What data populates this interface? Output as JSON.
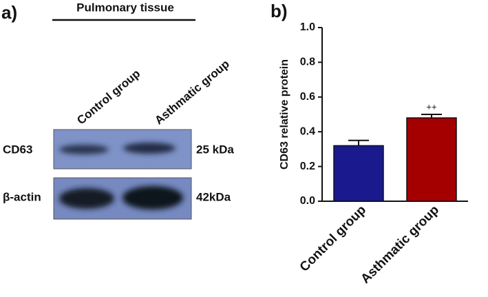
{
  "panel_a": {
    "label": "a)",
    "header": "Pulmonary tissue",
    "lanes": [
      "Control group",
      "Asthmatic group"
    ],
    "rows": [
      {
        "protein": "CD63",
        "size": "25 kDa"
      },
      {
        "protein": "β-actin",
        "size": "42kDa"
      }
    ]
  },
  "chart_data": {
    "type": "bar",
    "panel_label": "b)",
    "y_label": "CD63 relative protein",
    "categories": [
      "Control group",
      "Asthmatic group"
    ],
    "values": [
      0.32,
      0.48
    ],
    "errors": [
      0.03,
      0.02
    ],
    "colors": [
      "#1a1a8e",
      "#a50000"
    ],
    "annotation": "++",
    "ylim": [
      0,
      1
    ],
    "yticks": [
      {
        "value": 0,
        "label": "0.0"
      },
      {
        "value": 0.2,
        "label": "0.2"
      },
      {
        "value": 0.4,
        "label": "0.4"
      },
      {
        "value": 0.6,
        "label": "0.6"
      },
      {
        "value": 0.8,
        "label": "0.8"
      },
      {
        "value": 1,
        "label": "1.0"
      }
    ]
  }
}
